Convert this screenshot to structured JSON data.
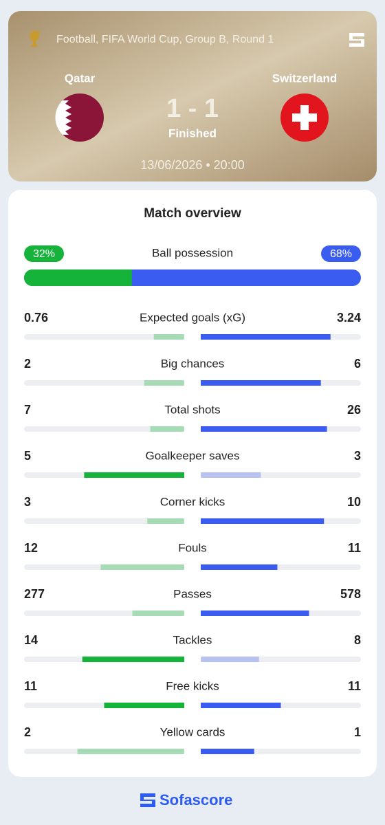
{
  "header": {
    "competition": "Football, FIFA World Cup, Group B, Round 1",
    "home_team": "Qatar",
    "away_team": "Switzerland",
    "score": "1 - 1",
    "status": "Finished",
    "datetime": "13/06/2026 • 20:00"
  },
  "overview": {
    "title": "Match overview",
    "home_color": "#16b33a",
    "away_color": "#3a5cf0",
    "possession": {
      "name": "Ball possession",
      "home": {
        "value": 32,
        "label": "32%"
      },
      "away": {
        "value": 68,
        "label": "68%"
      }
    },
    "stats": [
      {
        "name": "Expected goals (xG)",
        "home": 0.76,
        "away": 3.24,
        "home_highlight": false,
        "away_highlight": true
      },
      {
        "name": "Big chances",
        "home": 2,
        "away": 6,
        "home_highlight": false,
        "away_highlight": true
      },
      {
        "name": "Total shots",
        "home": 7,
        "away": 26,
        "home_highlight": false,
        "away_highlight": true
      },
      {
        "name": "Goalkeeper saves",
        "home": 5,
        "away": 3,
        "home_highlight": true,
        "away_highlight": false
      },
      {
        "name": "Corner kicks",
        "home": 3,
        "away": 10,
        "home_highlight": false,
        "away_highlight": true
      },
      {
        "name": "Fouls",
        "home": 12,
        "away": 11,
        "home_highlight": false,
        "away_highlight": true
      },
      {
        "name": "Passes",
        "home": 277,
        "away": 578,
        "home_highlight": false,
        "away_highlight": true
      },
      {
        "name": "Tackles",
        "home": 14,
        "away": 8,
        "home_highlight": true,
        "away_highlight": false
      },
      {
        "name": "Free kicks",
        "home": 11,
        "away": 11,
        "home_highlight": true,
        "away_highlight": true
      },
      {
        "name": "Yellow cards",
        "home": 2,
        "away": 1,
        "home_highlight": false,
        "away_highlight": true
      }
    ]
  },
  "footer": {
    "brand": "Sofascore"
  }
}
